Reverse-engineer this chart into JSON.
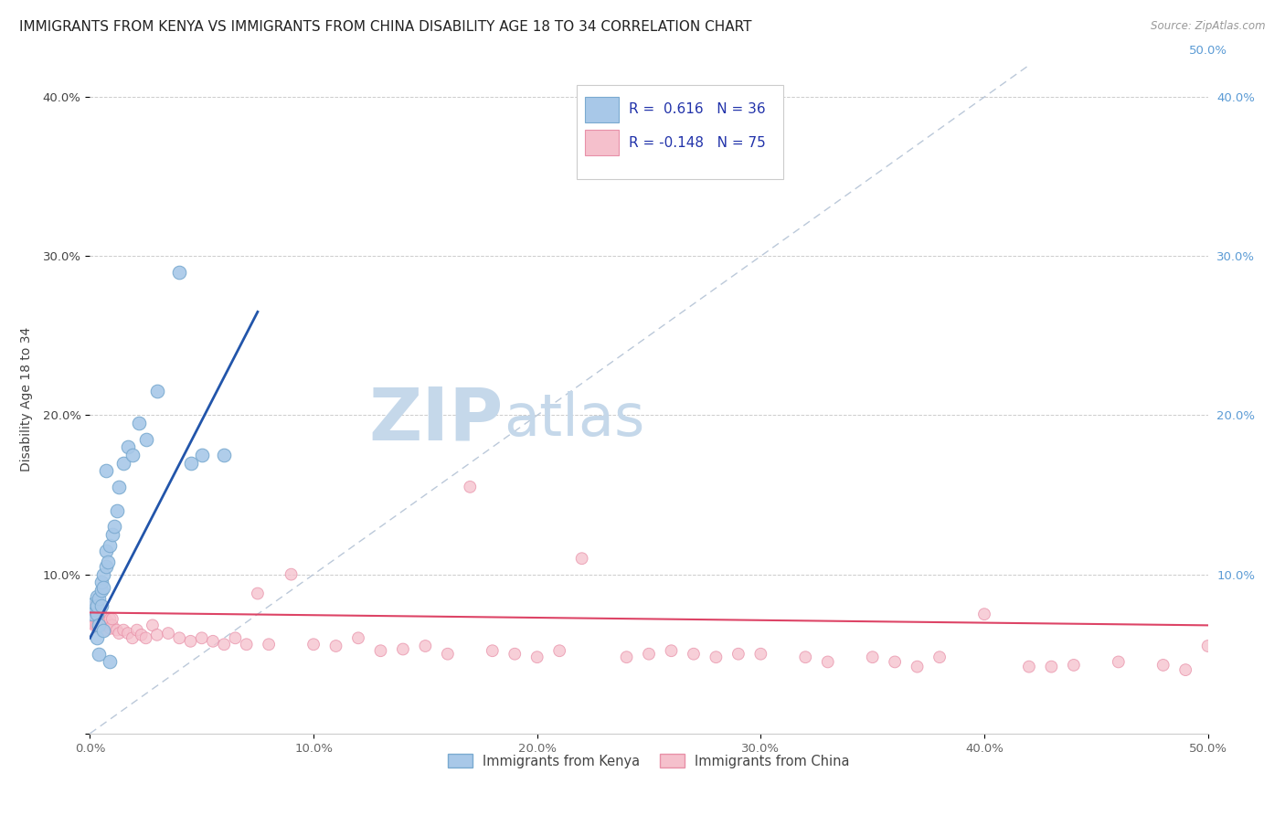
{
  "title": "IMMIGRANTS FROM KENYA VS IMMIGRANTS FROM CHINA DISABILITY AGE 18 TO 34 CORRELATION CHART",
  "source": "Source: ZipAtlas.com",
  "ylabel": "Disability Age 18 to 34",
  "xlim": [
    0.0,
    0.5
  ],
  "ylim": [
    -0.02,
    0.42
  ],
  "plot_ylim": [
    0.0,
    0.42
  ],
  "xticks": [
    0.0,
    0.1,
    0.2,
    0.3,
    0.4,
    0.5
  ],
  "yticks": [
    0.0,
    0.1,
    0.2,
    0.3,
    0.4
  ],
  "xtick_labels": [
    "0.0%",
    "10.0%",
    "20.0%",
    "30.0%",
    "40.0%",
    "50.0%"
  ],
  "ytick_labels": [
    "",
    "10.0%",
    "20.0%",
    "30.0%",
    "40.0%"
  ],
  "kenya_color": "#a8c8e8",
  "kenya_edge_color": "#7aaad0",
  "china_color": "#f5c0cc",
  "china_edge_color": "#e890a8",
  "kenya_line_color": "#2255aa",
  "china_line_color": "#dd4466",
  "ref_line_color": "#aabbd0",
  "legend_kenya_label": "Immigrants from Kenya",
  "legend_china_label": "Immigrants from China",
  "legend_kenya_R": "0.616",
  "legend_kenya_N": "36",
  "legend_china_R": "-0.148",
  "legend_china_N": "75",
  "watermark_zip": "ZIP",
  "watermark_atlas": "atlas",
  "watermark_color_zip": "#c5d8ea",
  "watermark_color_atlas": "#c5d8ea",
  "right_axis_color": "#5b9bd5",
  "title_fontsize": 11,
  "axis_fontsize": 10,
  "tick_fontsize": 9.5,
  "kenya_x": [
    0.001,
    0.002,
    0.002,
    0.003,
    0.003,
    0.003,
    0.004,
    0.004,
    0.005,
    0.005,
    0.005,
    0.006,
    0.006,
    0.007,
    0.007,
    0.008,
    0.009,
    0.01,
    0.011,
    0.012,
    0.013,
    0.015,
    0.017,
    0.019,
    0.022,
    0.025,
    0.03,
    0.04,
    0.05,
    0.06,
    0.003,
    0.004,
    0.006,
    0.007,
    0.009,
    0.045
  ],
  "kenya_y": [
    0.075,
    0.078,
    0.082,
    0.086,
    0.075,
    0.08,
    0.068,
    0.085,
    0.09,
    0.095,
    0.08,
    0.1,
    0.092,
    0.105,
    0.115,
    0.108,
    0.118,
    0.125,
    0.13,
    0.14,
    0.155,
    0.17,
    0.18,
    0.175,
    0.195,
    0.185,
    0.215,
    0.29,
    0.175,
    0.175,
    0.06,
    0.05,
    0.065,
    0.165,
    0.045,
    0.17
  ],
  "china_x": [
    0.001,
    0.001,
    0.002,
    0.002,
    0.003,
    0.003,
    0.004,
    0.004,
    0.005,
    0.005,
    0.006,
    0.006,
    0.007,
    0.007,
    0.008,
    0.008,
    0.009,
    0.009,
    0.01,
    0.01,
    0.012,
    0.013,
    0.015,
    0.017,
    0.019,
    0.021,
    0.023,
    0.025,
    0.028,
    0.03,
    0.035,
    0.04,
    0.045,
    0.05,
    0.055,
    0.06,
    0.065,
    0.07,
    0.075,
    0.08,
    0.09,
    0.1,
    0.11,
    0.12,
    0.13,
    0.14,
    0.15,
    0.16,
    0.17,
    0.18,
    0.19,
    0.2,
    0.21,
    0.22,
    0.24,
    0.25,
    0.26,
    0.27,
    0.28,
    0.29,
    0.3,
    0.32,
    0.33,
    0.35,
    0.36,
    0.37,
    0.38,
    0.4,
    0.42,
    0.43,
    0.44,
    0.46,
    0.48,
    0.49,
    0.5
  ],
  "china_y": [
    0.075,
    0.072,
    0.07,
    0.068,
    0.075,
    0.068,
    0.066,
    0.07,
    0.075,
    0.068,
    0.07,
    0.068,
    0.072,
    0.065,
    0.07,
    0.068,
    0.066,
    0.072,
    0.068,
    0.072,
    0.065,
    0.063,
    0.065,
    0.063,
    0.06,
    0.065,
    0.062,
    0.06,
    0.068,
    0.062,
    0.063,
    0.06,
    0.058,
    0.06,
    0.058,
    0.056,
    0.06,
    0.056,
    0.088,
    0.056,
    0.1,
    0.056,
    0.055,
    0.06,
    0.052,
    0.053,
    0.055,
    0.05,
    0.155,
    0.052,
    0.05,
    0.048,
    0.052,
    0.11,
    0.048,
    0.05,
    0.052,
    0.05,
    0.048,
    0.05,
    0.05,
    0.048,
    0.045,
    0.048,
    0.045,
    0.042,
    0.048,
    0.075,
    0.042,
    0.042,
    0.043,
    0.045,
    0.043,
    0.04,
    0.055
  ],
  "china_sizes_big_idx": [
    0,
    1
  ],
  "kenya_line_x": [
    0.0,
    0.075
  ],
  "kenya_line_y": [
    0.06,
    0.265
  ],
  "china_line_x": [
    0.0,
    0.5
  ],
  "china_line_y": [
    0.076,
    0.068
  ],
  "ref_line_x": [
    0.0,
    0.42
  ],
  "ref_line_y": [
    0.0,
    0.42
  ]
}
